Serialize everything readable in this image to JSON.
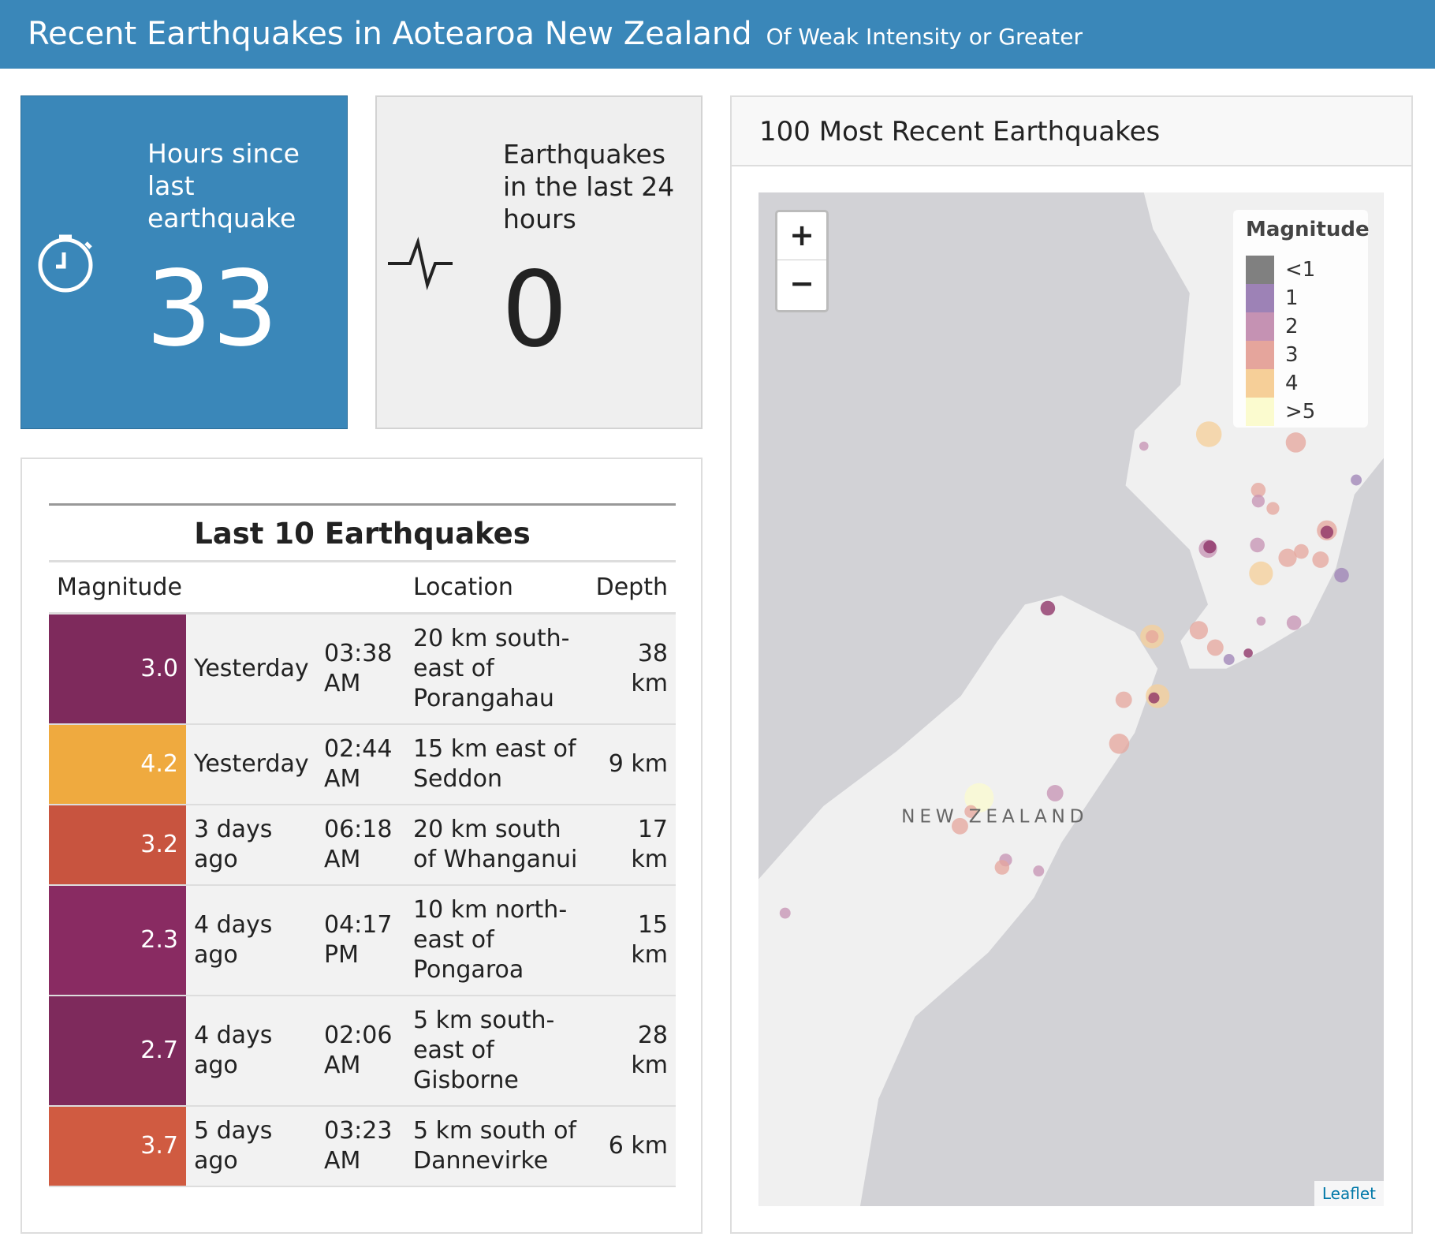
{
  "header": {
    "title": "Recent Earthquakes in Aotearoa New Zealand",
    "subtitle": "Of Weak Intensity or Greater"
  },
  "value_boxes": [
    {
      "label": "Hours since last earthquake",
      "value": "33"
    },
    {
      "label": "Earthquakes in the last 24 hours",
      "value": "0"
    }
  ],
  "table": {
    "title": "Last 10 Earthquakes",
    "columns": [
      "Magnitude",
      "",
      "",
      "Location",
      "Depth"
    ],
    "rows": [
      [
        "3.0",
        "Yesterday",
        "03:38 AM",
        "20 km south-east of Porangahau",
        "38 km"
      ],
      [
        "4.2",
        "Yesterday",
        "02:44 AM",
        "15 km east of Seddon",
        "9 km"
      ],
      [
        "3.2",
        "3 days ago",
        "06:18 AM",
        "20 km south of Whanganui",
        "17 km"
      ],
      [
        "2.3",
        "4 days ago",
        "04:17 PM",
        "10 km north-east of Pongaroa",
        "15 km"
      ],
      [
        "2.7",
        "4 days ago",
        "02:06 AM",
        "5 km south-east of Gisborne",
        "28 km"
      ],
      [
        "3.7",
        "5 days ago",
        "03:23 AM",
        "5 km south of Dannevirke",
        "6 km"
      ]
    ],
    "row_colors": [
      "#7e2a5c",
      "#efaa3f",
      "#c8543f",
      "#892b62",
      "#7e2a5c",
      "#d05b41"
    ]
  },
  "map": {
    "title": "100 Most Recent Earthquakes",
    "zoom_in": "+",
    "zoom_out": "−",
    "country_label": "NEW ZEALAND",
    "attribution": "Leaflet",
    "legend": {
      "title": "Magnitude",
      "labels": [
        "<1",
        "1",
        "2",
        "3",
        "4",
        ">5"
      ],
      "colors": [
        "#808080",
        "#9d82b6",
        "#c592b3",
        "#e5a59c",
        "#f6cf98",
        "#fbfbcf"
      ]
    }
  }
}
